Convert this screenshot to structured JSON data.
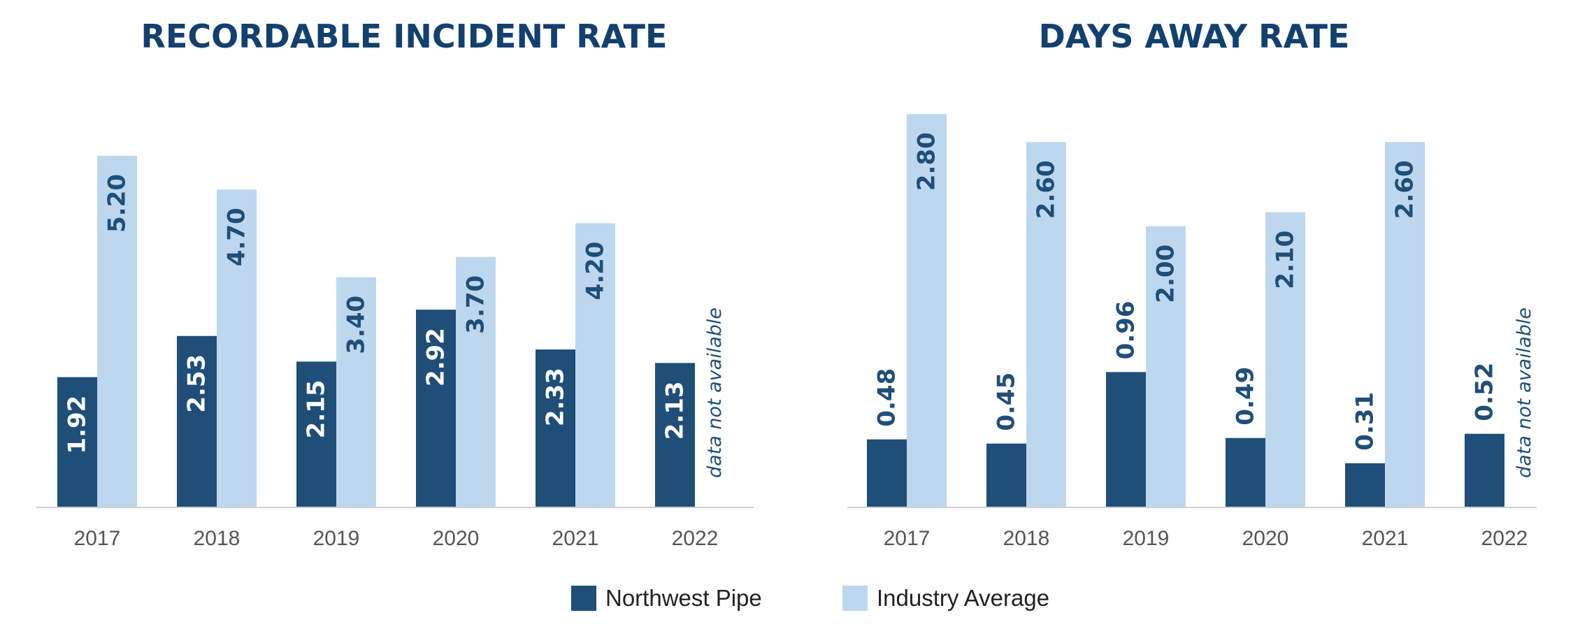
{
  "colors": {
    "northwest": "#1f4e79",
    "industry": "#bdd7ee",
    "title": "#12406f",
    "axis": "#d0d0d0"
  },
  "legend": [
    {
      "name": "Northwest Pipe",
      "color": "#1f4e79"
    },
    {
      "name": "Industry Average",
      "color": "#bdd7ee"
    }
  ],
  "chart_data": [
    {
      "type": "bar",
      "title": "RECORDABLE INCIDENT RATE",
      "categories": [
        "2017",
        "2018",
        "2019",
        "2020",
        "2021",
        "2022"
      ],
      "ylim": [
        0,
        5.8
      ],
      "grid": false,
      "series": [
        {
          "name": "Northwest Pipe",
          "values": [
            1.92,
            2.53,
            2.15,
            2.92,
            2.33,
            2.13
          ],
          "labels": [
            "1.92",
            "2.53",
            "2.15",
            "2.92",
            "2.33",
            "2.13"
          ]
        },
        {
          "name": "Industry Average",
          "values": [
            5.2,
            4.7,
            3.4,
            3.7,
            4.2,
            null
          ],
          "labels": [
            "5.20",
            "4.70",
            "3.40",
            "3.70",
            "4.20",
            null
          ]
        }
      ],
      "missing_note": "data not available"
    },
    {
      "type": "bar",
      "title": "DAYS AWAY RATE",
      "categories": [
        "2017",
        "2018",
        "2019",
        "2020",
        "2021",
        "2022"
      ],
      "ylim": [
        0,
        3.04
      ],
      "grid": false,
      "series": [
        {
          "name": "Northwest Pipe",
          "values": [
            0.48,
            0.45,
            0.96,
            0.49,
            0.31,
            0.52
          ],
          "labels": [
            "0.48",
            "0.45",
            "0.96",
            "0.49",
            "0.31",
            "0.52"
          ]
        },
        {
          "name": "Industry Average",
          "values": [
            2.8,
            2.6,
            2.0,
            2.1,
            2.6,
            null
          ],
          "labels": [
            "2.80",
            "2.60",
            "2.00",
            "2.10",
            "2.60",
            null
          ]
        }
      ],
      "missing_note": "data not available"
    }
  ]
}
